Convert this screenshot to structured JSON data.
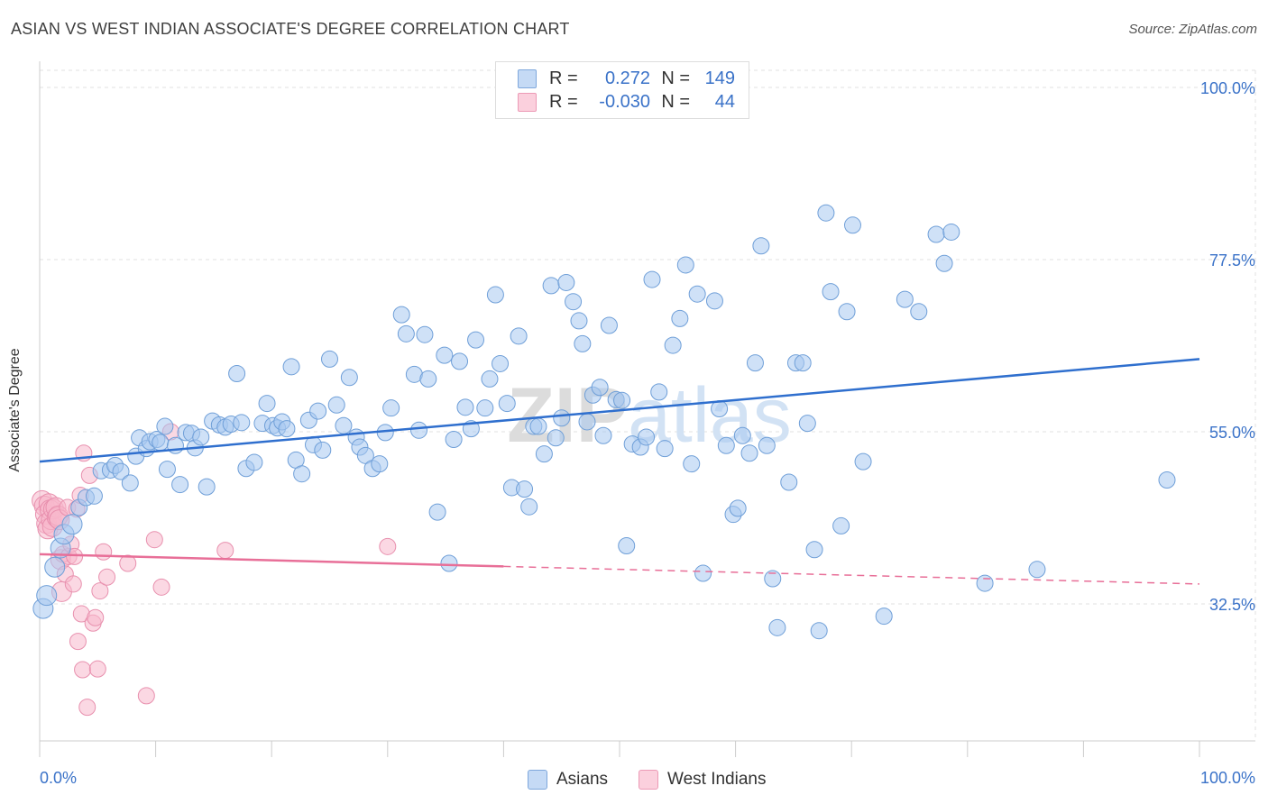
{
  "title": "ASIAN VS WEST INDIAN ASSOCIATE'S DEGREE CORRELATION CHART",
  "source": "Source: ZipAtlas.com",
  "watermark": "ZIPatlas",
  "legend": {
    "rows": [
      {
        "name": "Asians",
        "r_label": "R =",
        "r_value": "0.272",
        "n_label": "N =",
        "n_value": "149",
        "color": "#a8c8f0"
      },
      {
        "name": "West Indians",
        "r_label": "R =",
        "r_value": "-0.030",
        "n_label": "N =",
        "n_value": "44",
        "color": "#f8b8cc"
      }
    ]
  },
  "chart_data": {
    "type": "scatter",
    "title": "ASIAN VS WEST INDIAN ASSOCIATE'S DEGREE CORRELATION CHART",
    "xlabel": "",
    "ylabel": "Associate's Degree",
    "xlim": [
      0,
      100
    ],
    "ylim": [
      15,
      103
    ],
    "x_tick_labels": [
      "0.0%",
      "100.0%"
    ],
    "y_tick_labels": [
      "100.0%",
      "77.5%",
      "55.0%",
      "32.5%"
    ],
    "y_ticks": [
      100,
      77.5,
      55,
      32.5
    ],
    "grid": true,
    "legend_position": "top-center",
    "series": [
      {
        "name": "Asians",
        "color": "#a8c8f0",
        "stroke": "#6f9fd8",
        "trend": {
          "x": [
            0,
            100
          ],
          "y": [
            51.1,
            64.5
          ],
          "color": "#2f6fce"
        },
        "points": [
          [
            0.3,
            31.9
          ],
          [
            0.6,
            33.6
          ],
          [
            1.3,
            37.3
          ],
          [
            1.8,
            39.8
          ],
          [
            2.1,
            41.6
          ],
          [
            2.8,
            42.9
          ],
          [
            3.4,
            45.1
          ],
          [
            4.0,
            46.4
          ],
          [
            4.7,
            46.6
          ],
          [
            5.3,
            49.9
          ],
          [
            6.1,
            50.0
          ],
          [
            6.5,
            50.6
          ],
          [
            7.0,
            49.8
          ],
          [
            7.8,
            48.3
          ],
          [
            8.3,
            51.8
          ],
          [
            8.6,
            54.2
          ],
          [
            9.2,
            52.8
          ],
          [
            9.5,
            53.7
          ],
          [
            10.1,
            54.0
          ],
          [
            10.4,
            53.6
          ],
          [
            10.8,
            55.7
          ],
          [
            11.0,
            50.1
          ],
          [
            11.7,
            53.2
          ],
          [
            12.1,
            48.1
          ],
          [
            12.6,
            54.9
          ],
          [
            13.1,
            54.8
          ],
          [
            13.4,
            52.9
          ],
          [
            13.9,
            54.3
          ],
          [
            14.4,
            47.8
          ],
          [
            14.9,
            56.4
          ],
          [
            15.5,
            55.9
          ],
          [
            16.0,
            55.6
          ],
          [
            16.5,
            56.0
          ],
          [
            17.0,
            62.6
          ],
          [
            17.4,
            56.2
          ],
          [
            17.8,
            50.2
          ],
          [
            18.5,
            51.0
          ],
          [
            19.2,
            56.1
          ],
          [
            19.6,
            58.7
          ],
          [
            20.1,
            55.8
          ],
          [
            20.5,
            55.5
          ],
          [
            20.9,
            56.3
          ],
          [
            21.3,
            55.4
          ],
          [
            21.7,
            63.5
          ],
          [
            22.1,
            51.3
          ],
          [
            22.6,
            49.5
          ],
          [
            23.2,
            56.5
          ],
          [
            23.6,
            53.3
          ],
          [
            24.0,
            57.7
          ],
          [
            24.4,
            52.6
          ],
          [
            25.0,
            64.5
          ],
          [
            25.6,
            58.5
          ],
          [
            26.2,
            55.8
          ],
          [
            26.7,
            62.1
          ],
          [
            27.3,
            54.3
          ],
          [
            27.6,
            53.0
          ],
          [
            28.1,
            51.9
          ],
          [
            28.7,
            50.2
          ],
          [
            29.3,
            50.8
          ],
          [
            29.8,
            54.9
          ],
          [
            30.3,
            58.1
          ],
          [
            31.2,
            70.3
          ],
          [
            31.6,
            67.8
          ],
          [
            32.3,
            62.5
          ],
          [
            32.7,
            55.2
          ],
          [
            33.2,
            67.7
          ],
          [
            33.5,
            61.9
          ],
          [
            34.3,
            44.5
          ],
          [
            34.9,
            65.0
          ],
          [
            35.3,
            37.8
          ],
          [
            35.7,
            54.0
          ],
          [
            36.2,
            64.2
          ],
          [
            36.7,
            58.2
          ],
          [
            37.2,
            55.4
          ],
          [
            37.6,
            67.0
          ],
          [
            38.4,
            58.1
          ],
          [
            38.8,
            61.9
          ],
          [
            39.3,
            72.9
          ],
          [
            39.7,
            63.9
          ],
          [
            40.3,
            58.7
          ],
          [
            40.7,
            47.7
          ],
          [
            41.3,
            67.5
          ],
          [
            41.8,
            47.5
          ],
          [
            42.2,
            45.2
          ],
          [
            42.6,
            55.7
          ],
          [
            43.0,
            55.7
          ],
          [
            43.5,
            52.1
          ],
          [
            44.1,
            74.1
          ],
          [
            44.5,
            54.2
          ],
          [
            45.0,
            56.8
          ],
          [
            45.4,
            74.5
          ],
          [
            46.0,
            72.0
          ],
          [
            46.5,
            69.5
          ],
          [
            46.8,
            66.5
          ],
          [
            47.2,
            56.3
          ],
          [
            47.7,
            59.8
          ],
          [
            48.3,
            60.8
          ],
          [
            48.6,
            54.5
          ],
          [
            49.1,
            68.9
          ],
          [
            49.7,
            59.2
          ],
          [
            50.2,
            59.1
          ],
          [
            50.6,
            40.1
          ],
          [
            51.1,
            53.4
          ],
          [
            51.8,
            53.0
          ],
          [
            52.3,
            54.3
          ],
          [
            52.8,
            74.9
          ],
          [
            53.4,
            60.2
          ],
          [
            53.9,
            52.8
          ],
          [
            54.6,
            66.3
          ],
          [
            55.2,
            69.8
          ],
          [
            55.7,
            76.8
          ],
          [
            56.2,
            50.8
          ],
          [
            56.7,
            73.0
          ],
          [
            57.2,
            36.5
          ],
          [
            58.2,
            72.1
          ],
          [
            58.6,
            58.0
          ],
          [
            59.2,
            53.2
          ],
          [
            59.8,
            44.2
          ],
          [
            60.2,
            45.0
          ],
          [
            60.6,
            54.5
          ],
          [
            61.2,
            52.2
          ],
          [
            61.7,
            64.0
          ],
          [
            62.2,
            79.3
          ],
          [
            62.7,
            53.2
          ],
          [
            63.2,
            35.8
          ],
          [
            63.6,
            29.4
          ],
          [
            64.6,
            48.4
          ],
          [
            65.2,
            64.0
          ],
          [
            65.8,
            64.0
          ],
          [
            66.2,
            56.1
          ],
          [
            66.8,
            39.6
          ],
          [
            67.2,
            29.0
          ],
          [
            67.8,
            83.6
          ],
          [
            68.2,
            73.3
          ],
          [
            69.1,
            42.7
          ],
          [
            69.6,
            70.7
          ],
          [
            70.1,
            82.0
          ],
          [
            71.0,
            51.1
          ],
          [
            72.8,
            30.9
          ],
          [
            74.6,
            72.3
          ],
          [
            75.8,
            70.7
          ],
          [
            77.3,
            80.8
          ],
          [
            78.0,
            77.0
          ],
          [
            78.6,
            81.1
          ],
          [
            81.5,
            35.2
          ],
          [
            86.0,
            37.0
          ],
          [
            97.2,
            48.7
          ]
        ]
      },
      {
        "name": "West Indians",
        "color": "#f8b8cc",
        "stroke": "#e890ae",
        "trend": {
          "x": [
            0,
            40
          ],
          "y": [
            39.0,
            37.4
          ],
          "color": "#e86f98"
        },
        "trend_dashed": {
          "x": [
            40,
            100
          ],
          "y": [
            37.4,
            35.1
          ]
        },
        "points": [
          [
            0.2,
            46.0
          ],
          [
            0.4,
            45.3
          ],
          [
            0.5,
            44.2
          ],
          [
            0.6,
            43.0
          ],
          [
            0.7,
            42.3
          ],
          [
            0.8,
            45.6
          ],
          [
            0.9,
            44.8
          ],
          [
            1.0,
            43.5
          ],
          [
            1.1,
            42.6
          ],
          [
            1.2,
            44.9
          ],
          [
            1.4,
            45.1
          ],
          [
            1.5,
            43.8
          ],
          [
            1.6,
            44.0
          ],
          [
            1.7,
            43.5
          ],
          [
            1.8,
            38.3
          ],
          [
            1.9,
            34.1
          ],
          [
            2.0,
            39.0
          ],
          [
            2.2,
            36.4
          ],
          [
            2.4,
            45.1
          ],
          [
            2.5,
            38.7
          ],
          [
            2.7,
            40.3
          ],
          [
            2.9,
            35.1
          ],
          [
            3.0,
            38.7
          ],
          [
            3.2,
            44.9
          ],
          [
            3.3,
            27.6
          ],
          [
            3.5,
            46.7
          ],
          [
            3.6,
            31.2
          ],
          [
            3.7,
            23.9
          ],
          [
            3.8,
            52.2
          ],
          [
            4.1,
            19.0
          ],
          [
            4.3,
            49.3
          ],
          [
            4.6,
            30.0
          ],
          [
            4.8,
            30.7
          ],
          [
            5.0,
            24.0
          ],
          [
            5.2,
            34.2
          ],
          [
            5.5,
            39.3
          ],
          [
            5.8,
            36.0
          ],
          [
            7.6,
            37.8
          ],
          [
            9.2,
            20.5
          ],
          [
            9.9,
            40.9
          ],
          [
            10.5,
            34.7
          ],
          [
            11.3,
            55.0
          ],
          [
            16.0,
            39.5
          ],
          [
            30.0,
            40.0
          ]
        ]
      }
    ]
  }
}
